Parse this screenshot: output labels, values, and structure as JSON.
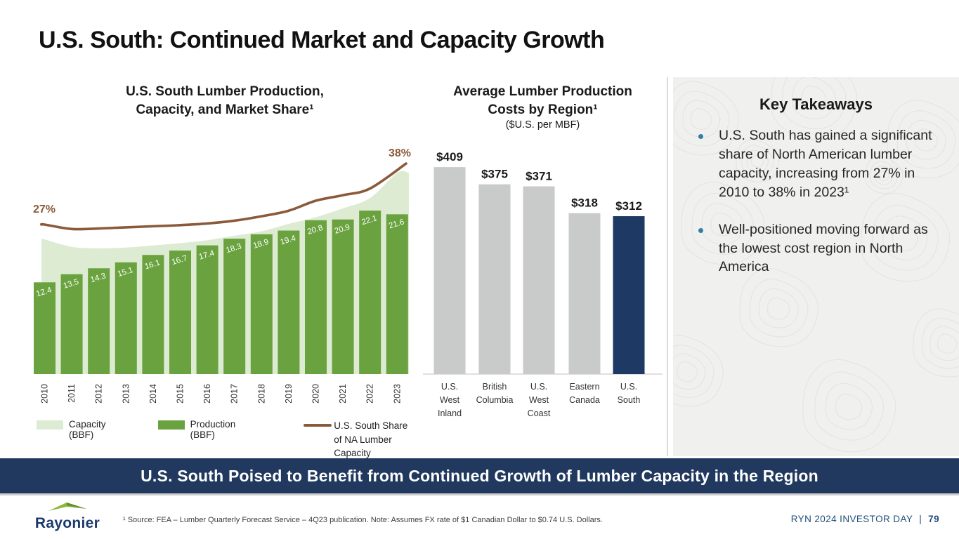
{
  "slide": {
    "title": "U.S. South: Continued Market and Capacity Growth",
    "banner": "U.S. South Poised to Benefit from Continued Growth of Lumber Capacity in the Region",
    "footer": {
      "logo_text": "Rayonier",
      "footnote": "¹ Source: FEA – Lumber Quarterly Forecast Service – 4Q23 publication. Note: Assumes FX rate of $1 Canadian Dollar to $0.74 U.S. Dollars.",
      "event_label": "RYN 2024 INVESTOR DAY",
      "separator": "|",
      "page_number": "79"
    }
  },
  "key_takeaways": {
    "title": "Key Takeaways",
    "bullet_color": "#2e80ab",
    "background": "#f0f0ee",
    "bullets": [
      {
        "text": "U.S. South has gained a significant share of North American lumber capacity, increasing from 27% in 2010 to 38% in 2023¹"
      },
      {
        "text": "Well-positioned moving forward as the lowest cost region in North America"
      }
    ]
  },
  "chart_data": [
    {
      "type": "bar",
      "subtype": "combo-area-bar-line",
      "title_lines": [
        "U.S. South Lumber Production,",
        "Capacity, and Market Share¹"
      ],
      "categories": [
        "2010",
        "2011",
        "2012",
        "2013",
        "2014",
        "2015",
        "2016",
        "2017",
        "2018",
        "2019",
        "2020",
        "2021",
        "2022",
        "2023"
      ],
      "series": [
        {
          "name": "Capacity (BBF)",
          "render": "area",
          "color": "#dcebd2",
          "estimated_from_pixels": true,
          "values": [
            18.2,
            17.2,
            17.0,
            17.1,
            17.4,
            17.7,
            18.1,
            18.7,
            19.3,
            20.3,
            21.2,
            22.4,
            23.8,
            27.2
          ]
        },
        {
          "name": "Production (BBF)",
          "render": "bar",
          "color": "#69a23e",
          "label_color": "#ffffff",
          "values": [
            12.4,
            13.5,
            14.3,
            15.1,
            16.1,
            16.7,
            17.4,
            18.3,
            18.9,
            19.4,
            20.8,
            20.9,
            22.1,
            21.6
          ]
        },
        {
          "name": "U.S. South Share of NA Lumber Capacity",
          "render": "line",
          "color": "#8a5a3a",
          "unit": "%",
          "endpoints_labeled": true,
          "intermediate_estimated": true,
          "values": [
            27,
            26.2,
            26.3,
            26.5,
            26.7,
            26.9,
            27.2,
            27.7,
            28.5,
            29.5,
            31.3,
            32.3,
            33.5,
            38
          ]
        }
      ],
      "line_labels": {
        "start": "27%",
        "end": "38%"
      },
      "legend": [
        {
          "label": "Capacity (BBF)",
          "color": "#dcebd2"
        },
        {
          "label": "Production (BBF)",
          "color": "#69a23e"
        },
        {
          "label_lines": [
            "U.S. South Share",
            "of NA Lumber Capacity"
          ],
          "color": "#8a5a3a"
        }
      ],
      "ylim": [
        0,
        30
      ],
      "grid": false,
      "legend_position": "bottom"
    },
    {
      "type": "bar",
      "title_lines": [
        "Average Lumber Production",
        "Costs by Region¹"
      ],
      "subtitle": "($U.S. per MBF)",
      "categories": [
        "U.S. West Inland",
        "British Columbia",
        "U.S. West Coast",
        "Eastern Canada",
        "U.S. South"
      ],
      "categories_lines": [
        [
          "U.S.",
          "West",
          "Inland"
        ],
        [
          "British",
          "Columbia"
        ],
        [
          "U.S.",
          "West",
          "Coast"
        ],
        [
          "Eastern",
          "Canada"
        ],
        [
          "U.S.",
          "South"
        ]
      ],
      "values": [
        409,
        375,
        371,
        318,
        312
      ],
      "value_labels": [
        "$409",
        "$375",
        "$371",
        "$318",
        "$312"
      ],
      "bar_default_color": "#c9caca",
      "highlight_index": 4,
      "highlight_color": "#1e3a64",
      "ylim": [
        0,
        440
      ],
      "grid": false
    }
  ]
}
